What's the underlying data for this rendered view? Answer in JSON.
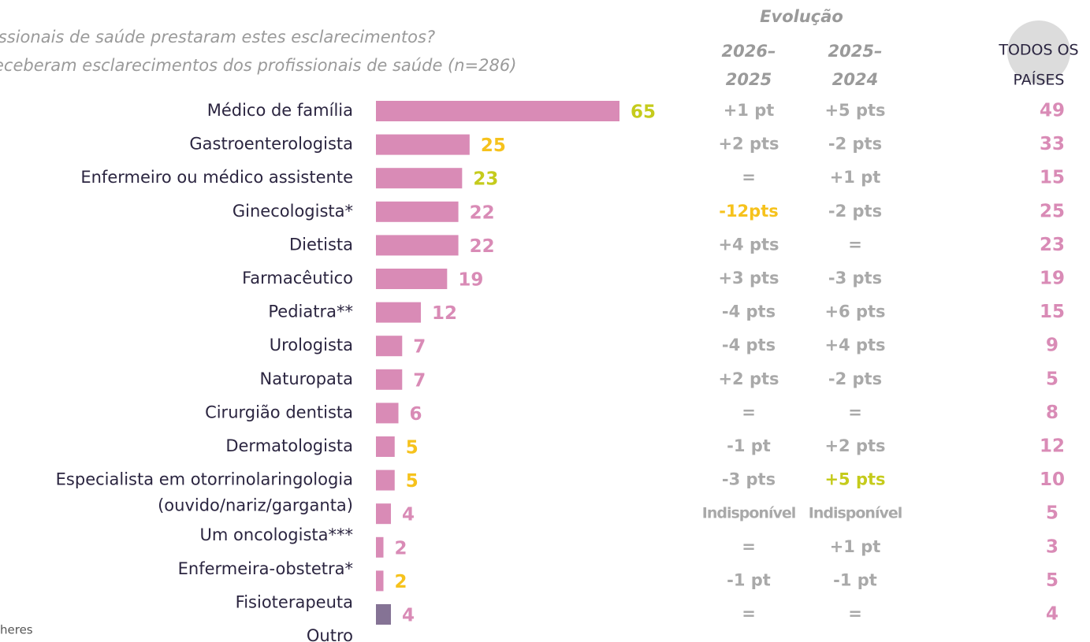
{
  "chart_data": {
    "type": "bar",
    "orientation": "horizontal",
    "title": "issionais de saúde prestaram estes esclarecimentos?",
    "subtitle": "eceberam esclarecimentos dos profissionais de saúde (n=286)",
    "categories": [
      "Médico de família",
      "Gastroenterologista",
      "Enfermeiro ou médico assistente",
      "Ginecologista*",
      "Dietista",
      "Farmacêutico",
      "Pediatra**",
      "Urologista",
      "Naturopata",
      "Cirurgião dentista",
      "Dermatologista",
      [
        "Especialista em otorrinolaringologia",
        "(ouvido/nariz/garganta)"
      ],
      "Um oncologista***",
      "Enfermeira-obstetra*",
      "Fisioterapeuta",
      "Outro"
    ],
    "values": [
      65,
      25,
      23,
      22,
      22,
      19,
      12,
      7,
      7,
      6,
      5,
      5,
      4,
      2,
      2,
      4
    ],
    "bar_colors": [
      "#d98bb6",
      "#d98bb6",
      "#d98bb6",
      "#d98bb6",
      "#d98bb6",
      "#d98bb6",
      "#d98bb6",
      "#d98bb6",
      "#d98bb6",
      "#d98bb6",
      "#d98bb6",
      "#d98bb6",
      "#d98bb6",
      "#d98bb6",
      "#d98bb6",
      "#857395"
    ],
    "value_colors": [
      "#c5cb1c",
      "#f6c21c",
      "#c5cb1c",
      "#d98bb6",
      "#d98bb6",
      "#d98bb6",
      "#d98bb6",
      "#d98bb6",
      "#d98bb6",
      "#d98bb6",
      "#f6c21c",
      "#f6c21c",
      "#d98bb6",
      "#d98bb6",
      "#f6c21c",
      "#d98bb6"
    ],
    "evolution": {
      "title": "Evolução",
      "color": "#a9a9a9",
      "columns": [
        {
          "header": [
            "2026–",
            "2025"
          ],
          "values": [
            "+1 pt",
            "+2 pts",
            "=",
            "-12pts",
            "+4 pts",
            "+3 pts",
            "-4 pts",
            "-4 pts",
            "+2 pts",
            "=",
            "-1 pt",
            "-3 pts",
            "Indisponível",
            "=",
            "-1 pt",
            "="
          ],
          "highlights": {
            "3": "#f6c21c"
          }
        },
        {
          "header": [
            "2025–",
            "2024"
          ],
          "values": [
            "+5 pts",
            "-2 pts",
            "+1 pt",
            "-2 pts",
            "=",
            "-3 pts",
            "+6 pts",
            "+4 pts",
            "-2 pts",
            "=",
            "+2 pts",
            "+5 pts",
            "Indisponível",
            "+1 pt",
            "-1 pt",
            "="
          ],
          "highlights": {
            "11": "#c5cb1c"
          }
        }
      ]
    },
    "all_countries": {
      "header": [
        "TODOS OS",
        "PAÍSES"
      ],
      "color": "#d98bb6",
      "values": [
        49,
        33,
        15,
        25,
        23,
        19,
        15,
        9,
        5,
        8,
        12,
        10,
        5,
        3,
        5,
        4
      ]
    },
    "footer": "heres"
  }
}
